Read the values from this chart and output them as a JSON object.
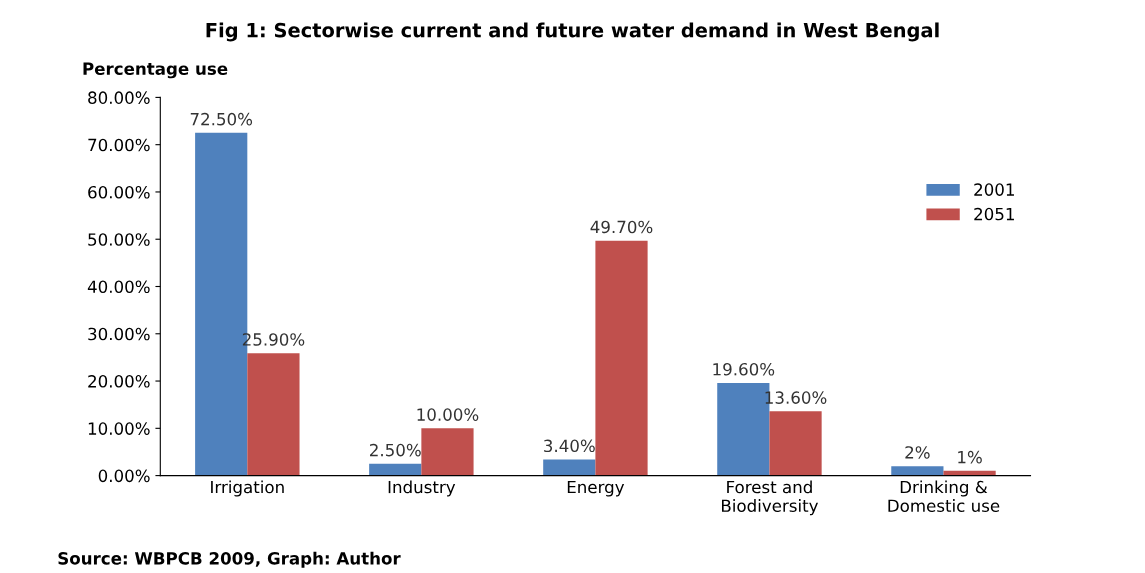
{
  "chart_data": {
    "type": "bar",
    "title": "Fig 1: Sectorwise current and future water demand in West Bengal",
    "ylabel": "Percentage use",
    "categories": [
      "Irrigation",
      "Industry",
      "Energy",
      "Forest and\nBiodiversity",
      "Drinking &\nDomestic use"
    ],
    "series": [
      {
        "name": "2001",
        "color": "#4f81bd",
        "values": [
          72.5,
          2.5,
          3.4,
          19.6,
          2
        ],
        "value_labels": [
          "72.50%",
          "2.50%",
          "3.40%",
          "19.60%",
          "2%"
        ]
      },
      {
        "name": "2051",
        "color": "#c0504d",
        "values": [
          25.9,
          10,
          49.7,
          13.6,
          1
        ],
        "value_labels": [
          "25.90%",
          "10.00%",
          "49.70%",
          "13.60%",
          "1%"
        ]
      }
    ],
    "ylim": [
      0,
      80
    ],
    "yticks": [
      {
        "value": 0,
        "label": "0.00%"
      },
      {
        "value": 10,
        "label": "10.00%"
      },
      {
        "value": 20,
        "label": "20.00%"
      },
      {
        "value": 30,
        "label": "30.00%"
      },
      {
        "value": 40,
        "label": "40.00%"
      },
      {
        "value": 50,
        "label": "50.00%"
      },
      {
        "value": 60,
        "label": "60.00%"
      },
      {
        "value": 70,
        "label": "70.00%"
      },
      {
        "value": 80,
        "label": "80.00%"
      }
    ],
    "grid": false,
    "legend": "right",
    "annotations": [
      "Source: WBPCB 2009, Graph: Author"
    ]
  }
}
